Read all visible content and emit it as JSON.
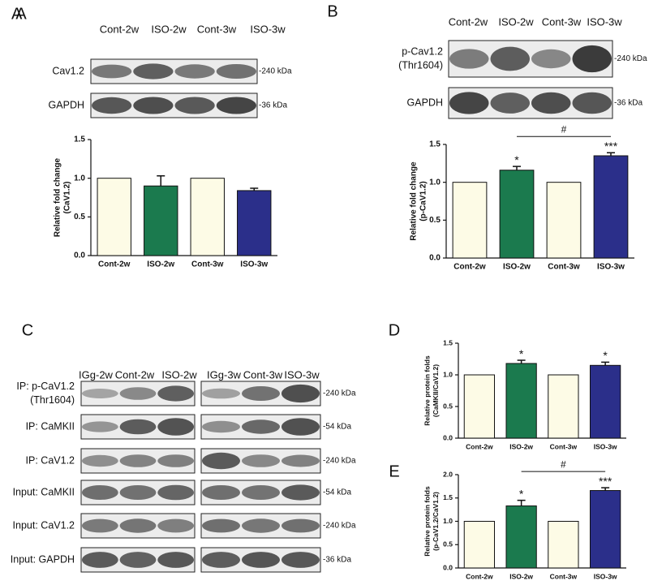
{
  "chart_data": [
    {
      "type": "bar",
      "panel": "A",
      "ylabel": [
        "Relative fold change",
        "(CaV1.2)"
      ],
      "categories": [
        "Cont-2w",
        "ISO-2w",
        "Cont-3w",
        "ISO-3w"
      ],
      "values": [
        1.0,
        0.9,
        1.0,
        0.84
      ],
      "errors": [
        0,
        0.13,
        0,
        0.03
      ],
      "colors": [
        "#fdfbe6",
        "#1b7a4e",
        "#fdfbe6",
        "#2b2f8a"
      ],
      "ylim": [
        0,
        1.5
      ],
      "yticks": [
        {
          "value": 0,
          "label": "0.0"
        },
        0.5,
        {
          "value": 1,
          "label": "1.0"
        },
        1.5
      ]
    },
    {
      "type": "bar",
      "panel": "B",
      "ylabel": [
        "Relative fold change",
        "(p-CaV1.2)"
      ],
      "categories": [
        "Cont-2w",
        "ISO-2w",
        "Cont-3w",
        "ISO-3w"
      ],
      "values": [
        1.0,
        1.16,
        1.0,
        1.35
      ],
      "errors": [
        0,
        0.05,
        0,
        0.04
      ],
      "colors": [
        "#fdfbe6",
        "#1b7a4e",
        "#fdfbe6",
        "#2b2f8a"
      ],
      "significance": [
        null,
        "*",
        null,
        "***"
      ],
      "bracket": "#",
      "ylim": [
        0,
        1.5
      ],
      "yticks": [
        {
          "value": 0,
          "label": "0.0"
        },
        0.5,
        {
          "value": 1,
          "label": "1.0"
        },
        1.5
      ]
    },
    {
      "type": "bar",
      "panel": "D",
      "ylabel": [
        "Relative protein folds",
        "(CaMKII/CaV1.2)"
      ],
      "categories": [
        "Cont-2w",
        "ISO-2w",
        "Cont-3w",
        "ISO-3w"
      ],
      "values": [
        1.0,
        1.18,
        1.0,
        1.15
      ],
      "errors": [
        0,
        0.05,
        0,
        0.05
      ],
      "colors": [
        "#fdfbe6",
        "#1b7a4e",
        "#fdfbe6",
        "#2b2f8a"
      ],
      "significance": [
        null,
        "*",
        null,
        "*"
      ],
      "ylim": [
        0,
        1.5
      ],
      "yticks": [
        {
          "value": 0,
          "label": "0.0"
        },
        0.5,
        {
          "value": 1,
          "label": "1.0"
        },
        1.5
      ]
    },
    {
      "type": "bar",
      "panel": "E",
      "ylabel": [
        "Relative protein folds",
        "(p-CaV1.2/CaV1.2)"
      ],
      "categories": [
        "Cont-2w",
        "ISO-2w",
        "Cont-3w",
        "ISO-3w"
      ],
      "values": [
        1.0,
        1.33,
        1.0,
        1.66
      ],
      "errors": [
        0,
        0.12,
        0,
        0.06
      ],
      "colors": [
        "#fdfbe6",
        "#1b7a4e",
        "#fdfbe6",
        "#2b2f8a"
      ],
      "significance": [
        null,
        "*",
        null,
        "***"
      ],
      "bracket": "#",
      "ylim": [
        0,
        2
      ],
      "yticks": [
        {
          "value": 0,
          "label": "0.0"
        },
        0.5,
        {
          "value": 1,
          "label": "1.0"
        },
        1.5,
        {
          "value": 2,
          "label": "2.0"
        }
      ]
    }
  ],
  "blots": {
    "A": {
      "panel": "A",
      "lanes": [
        "Cont-2w",
        "ISO-2w",
        "Cont-3w",
        "ISO-3w"
      ],
      "rows": [
        {
          "label": [
            "Cav1.2"
          ],
          "size": "-240 kDa"
        },
        {
          "label": [
            "GAPDH"
          ],
          "size": "-36  kDa"
        }
      ]
    },
    "B": {
      "lanes": [
        "Cont-2w",
        "ISO-2w",
        "Cont-3w",
        "ISO-3w"
      ],
      "rows": [
        {
          "label": [
            "p-Cav1.2",
            "(Thr1604)"
          ],
          "size": "-240 kDa"
        },
        {
          "label": [
            "GAPDH"
          ],
          "size": "-36 kDa"
        }
      ]
    },
    "C": {
      "panel": "C",
      "lanes_left": [
        "IGg-2w",
        "Cont-2w",
        "ISO-2w"
      ],
      "lanes_right": [
        "IGg-3w",
        "Cont-3w",
        "ISO-3w"
      ],
      "rows": [
        {
          "label": [
            "IP: p-CaV1.2",
            "(Thr1604)"
          ],
          "size": "-240 kDa"
        },
        {
          "label": [
            "IP: CaMKII"
          ],
          "size": "-54 kDa"
        },
        {
          "label": [
            "IP: CaV1.2"
          ],
          "size": "-240 kDa"
        },
        {
          "label": [
            "Input: CaMKII"
          ],
          "size": "-54 kDa"
        },
        {
          "label": [
            "Input: CaV1.2"
          ],
          "size": "-240 kDa"
        },
        {
          "label": [
            "Input: GAPDH"
          ],
          "size": "-36 kDa"
        }
      ]
    }
  }
}
